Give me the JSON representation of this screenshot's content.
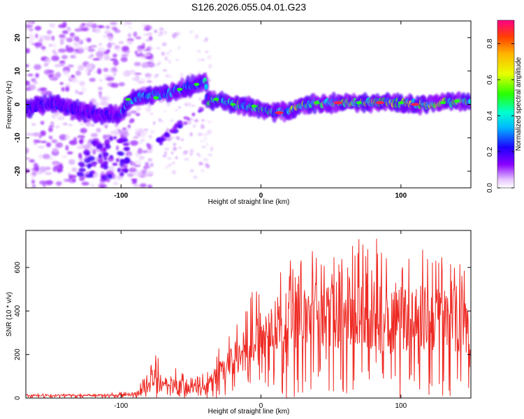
{
  "title": "S126.2026.055.04.01.G23",
  "colors": {
    "snr_line": "#ee2a24",
    "frame": "#000000",
    "background": "#ffffff"
  },
  "chart_data": [
    {
      "type": "heatmap",
      "name": "spectrogram",
      "xlabel": "Height of straight line (km)",
      "ylabel": "Frequency (Hz)",
      "xlim": [
        -168,
        150
      ],
      "ylim": [
        -25,
        25
      ],
      "xticks": [
        -100,
        0,
        100
      ],
      "xtick_labels": [
        "-100",
        "0",
        "100"
      ],
      "yticks": [
        -20,
        -10,
        0,
        10,
        20
      ],
      "ytick_labels": [
        "-20",
        "-10",
        "0",
        "10",
        "20"
      ],
      "colorbar": {
        "label": "Normalized spectral amplitude",
        "range": [
          0,
          0.93
        ],
        "ticks": [
          0.0,
          0.2,
          0.4,
          0.6,
          0.8
        ],
        "tick_labels": [
          "0.0",
          "0.2",
          "0.4",
          "0.6",
          "0.8"
        ],
        "colormap": "rainbow"
      },
      "ridge": {
        "description_points": [
          [
            -168,
            -1.5
          ],
          [
            -150,
            0.5
          ],
          [
            -130,
            -2
          ],
          [
            -115,
            -3
          ],
          [
            -100,
            -3
          ],
          [
            -95,
            1
          ],
          [
            -85,
            2.5
          ],
          [
            -70,
            3
          ],
          [
            -55,
            5
          ],
          [
            -45,
            6
          ],
          [
            -40,
            7
          ],
          [
            -38,
            1
          ],
          [
            -30,
            1.5
          ],
          [
            -20,
            0
          ],
          [
            -10,
            -0.5
          ],
          [
            0,
            -1.5
          ],
          [
            10,
            -2.5
          ],
          [
            20,
            -2
          ],
          [
            30,
            -0.5
          ],
          [
            40,
            0.5
          ],
          [
            60,
            0.5
          ],
          [
            80,
            0.5
          ],
          [
            100,
            0.5
          ],
          [
            120,
            0
          ],
          [
            140,
            1
          ],
          [
            150,
            1
          ]
        ]
      }
    },
    {
      "type": "line",
      "name": "snr",
      "xlabel": "Height of straight line (km)",
      "ylabel": "SNR (10 * v/v)",
      "xlim": [
        -168,
        150
      ],
      "ylim": [
        0,
        770
      ],
      "xticks": [
        -100,
        0,
        100
      ],
      "xtick_labels": [
        "-100",
        "0",
        "100"
      ],
      "yticks": [
        0,
        200,
        400,
        600
      ],
      "ytick_labels": [
        "0",
        "200",
        "400",
        "600"
      ],
      "envelope": {
        "x": [
          -168,
          -120,
          -90,
          -85,
          -80,
          -75,
          -70,
          -65,
          -60,
          -55,
          -50,
          -45,
          -40,
          -35,
          -30,
          -25,
          -20,
          -15,
          -10,
          -5,
          0,
          5,
          10,
          15,
          20,
          30,
          40,
          50,
          60,
          70,
          80,
          90,
          100,
          110,
          120,
          130,
          140,
          150
        ],
        "mean": [
          12,
          12,
          15,
          40,
          60,
          70,
          55,
          50,
          50,
          45,
          40,
          45,
          55,
          75,
          100,
          130,
          160,
          190,
          230,
          260,
          270,
          290,
          300,
          320,
          340,
          360,
          370,
          370,
          365,
          360,
          360,
          360,
          360,
          350,
          350,
          340,
          340,
          330
        ],
        "max": [
          20,
          22,
          30,
          90,
          140,
          210,
          150,
          120,
          140,
          110,
          95,
          100,
          120,
          160,
          250,
          270,
          320,
          400,
          470,
          500,
          580,
          560,
          540,
          600,
          660,
          650,
          730,
          700,
          760,
          740,
          720,
          770,
          720,
          700,
          680,
          690,
          700,
          660
        ]
      }
    }
  ]
}
